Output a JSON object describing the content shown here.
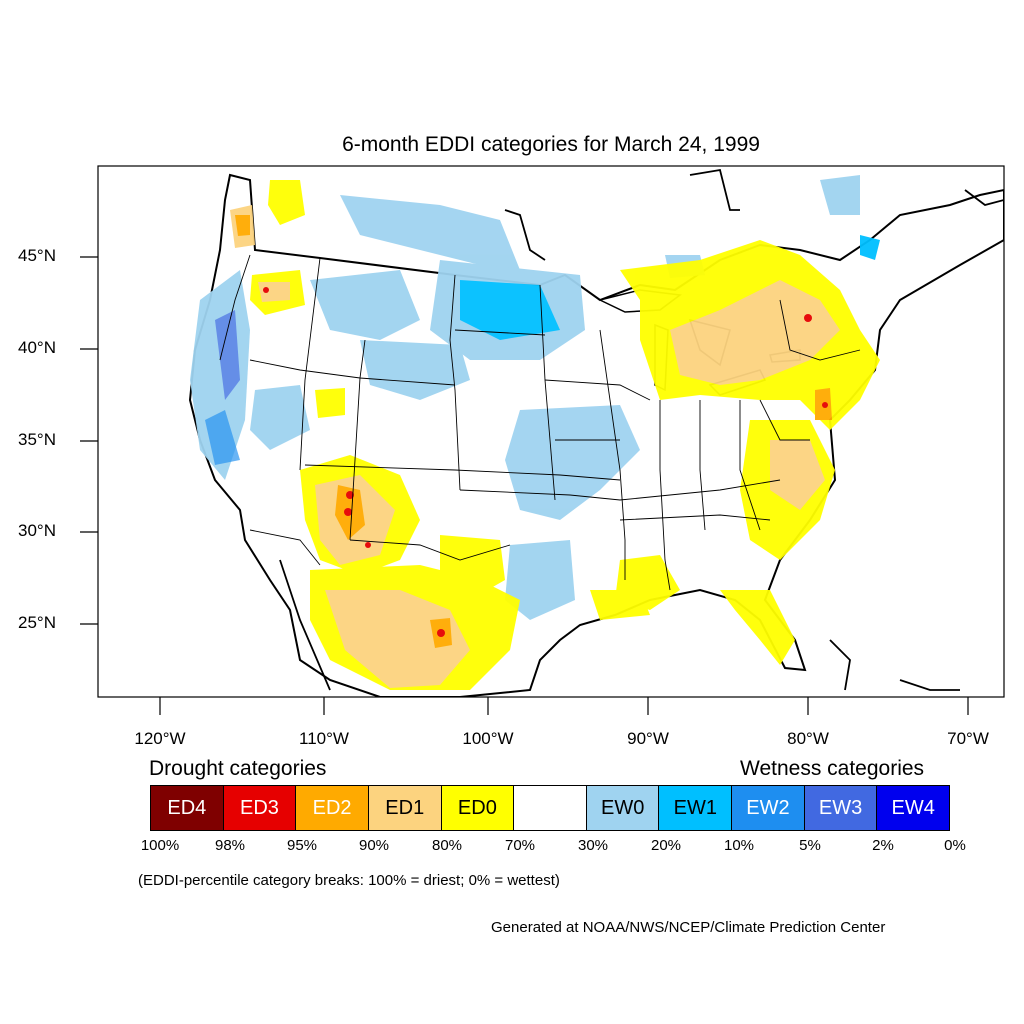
{
  "title": "6-month EDDI categories for March 24, 1999",
  "lat_ticks": [
    {
      "value": 45,
      "label": "45°N"
    },
    {
      "value": 40,
      "label": "40°N"
    },
    {
      "value": 35,
      "label": "35°N"
    },
    {
      "value": 30,
      "label": "30°N"
    },
    {
      "value": 25,
      "label": "25°N"
    }
  ],
  "lon_ticks": [
    {
      "value": -120,
      "label": "120°W"
    },
    {
      "value": -110,
      "label": "110°W"
    },
    {
      "value": -100,
      "label": "100°W"
    },
    {
      "value": -90,
      "label": "90°W"
    },
    {
      "value": -80,
      "label": "80°W"
    },
    {
      "value": -70,
      "label": "70°W"
    }
  ],
  "legend": {
    "drought_heading": "Drought categories",
    "wetness_heading": "Wetness categories",
    "categories": [
      {
        "label": "ED4",
        "color": "#7f0000",
        "text_color": "#ffffff"
      },
      {
        "label": "ED3",
        "color": "#e60000",
        "text_color": "#ffffff"
      },
      {
        "label": "ED2",
        "color": "#ffaa00",
        "text_color": "#ffffff"
      },
      {
        "label": "ED1",
        "color": "#fcd37f",
        "text_color": "#000000"
      },
      {
        "label": "ED0",
        "color": "#ffff00",
        "text_color": "#000000"
      },
      {
        "label": "",
        "color": "#ffffff",
        "text_color": "#000000"
      },
      {
        "label": "EW0",
        "color": "#9fd3f0",
        "text_color": "#000000"
      },
      {
        "label": "EW1",
        "color": "#00bfff",
        "text_color": "#000000"
      },
      {
        "label": "EW2",
        "color": "#1e8ef0",
        "text_color": "#ffffff"
      },
      {
        "label": "EW3",
        "color": "#4169e1",
        "text_color": "#ffffff"
      },
      {
        "label": "EW4",
        "color": "#0000ee",
        "text_color": "#ffffff"
      }
    ],
    "breaks": [
      "100%",
      "98%",
      "95%",
      "90%",
      "80%",
      "70%",
      "30%",
      "20%",
      "10%",
      "5%",
      "2%",
      "0%"
    ]
  },
  "note": "(EDDI-percentile category breaks: 100% = driest; 0% = wettest)",
  "credit": "Generated at NOAA/NWS/NCEP/Climate Prediction Center"
}
